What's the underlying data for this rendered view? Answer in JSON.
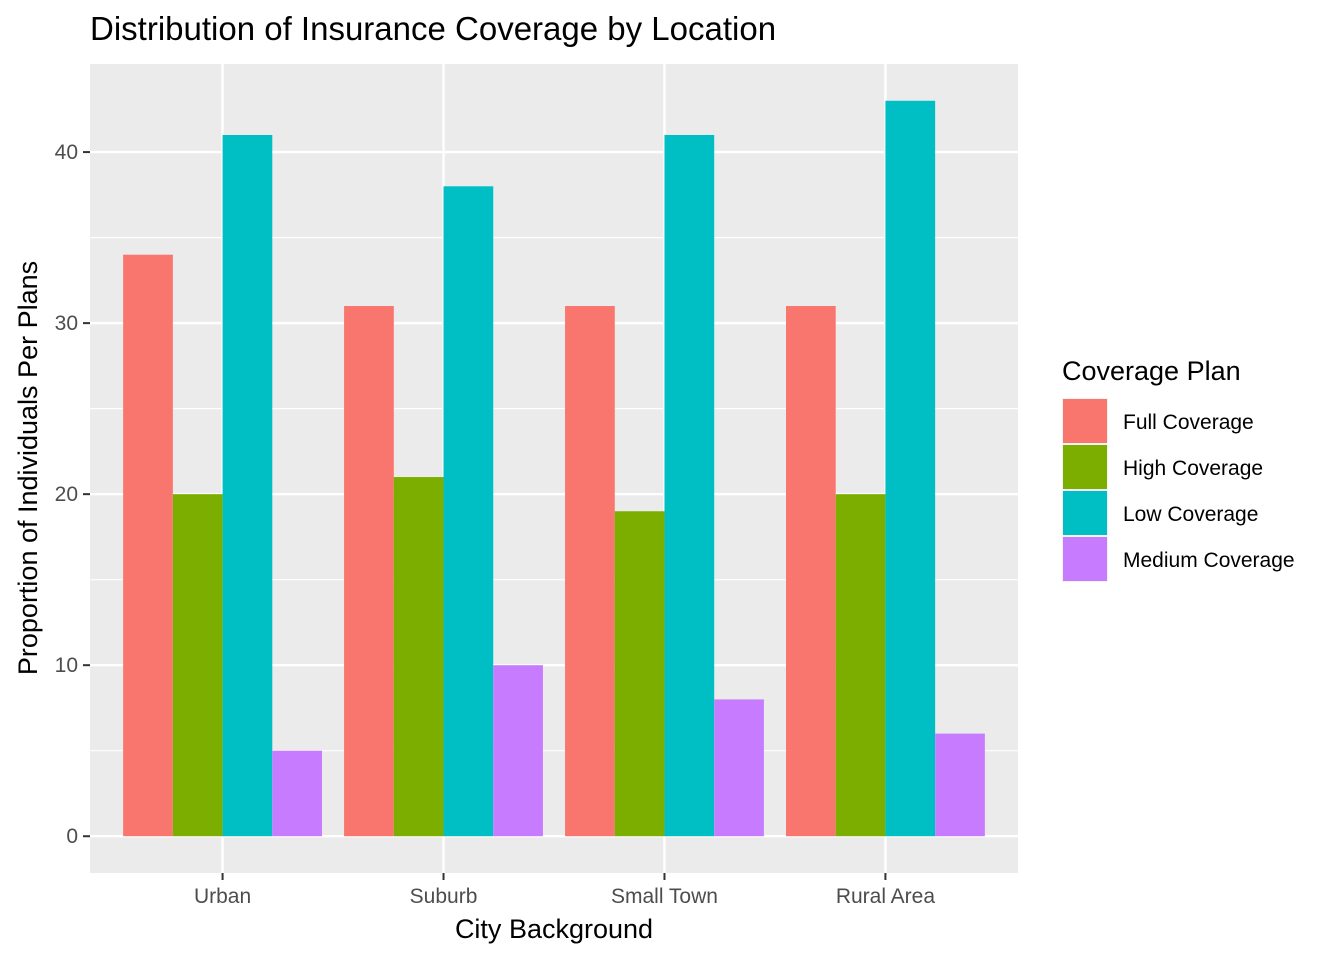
{
  "chart_data": {
    "type": "bar",
    "title": "Distribution of Insurance Coverage by Location",
    "xlabel": "City Background",
    "ylabel": "Proportion of Individuals Per Plans",
    "categories": [
      "Urban",
      "Suburb",
      "Small Town",
      "Rural Area"
    ],
    "series": [
      {
        "name": "Full Coverage",
        "color": "#F8766D",
        "values": [
          34,
          31,
          31,
          31
        ]
      },
      {
        "name": "High Coverage",
        "color": "#7CAE00",
        "values": [
          20,
          21,
          19,
          20
        ]
      },
      {
        "name": "Low Coverage",
        "color": "#00BFC4",
        "values": [
          41,
          38,
          41,
          43
        ]
      },
      {
        "name": "Medium Coverage",
        "color": "#C77CFF",
        "values": [
          5,
          10,
          8,
          6
        ]
      }
    ],
    "ylim": [
      -2.15,
      45.15
    ],
    "yticks": [
      0,
      10,
      20,
      30,
      40
    ],
    "grid": true,
    "legend": {
      "title": "Coverage Plan",
      "position": "right"
    },
    "colors": {
      "panel_background": "#EBEBEB",
      "gridline": "#FFFFFF"
    }
  }
}
